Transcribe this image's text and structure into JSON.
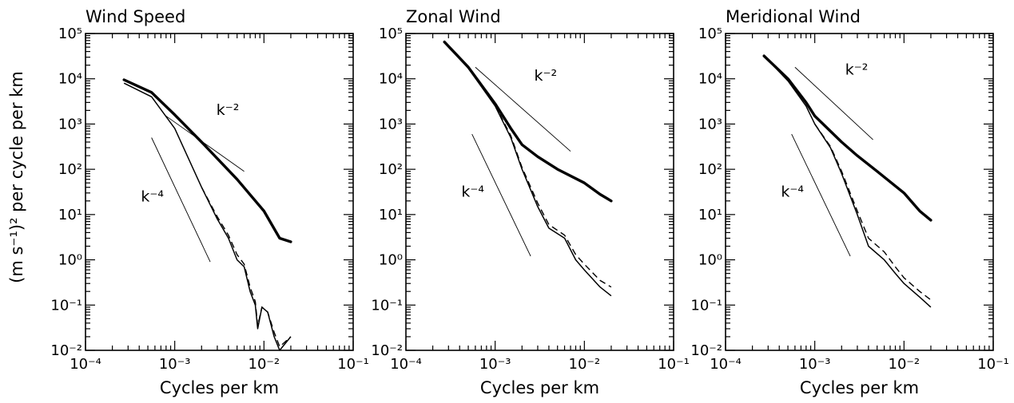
{
  "ylabel": "(m s⁻¹)² per cycle per km",
  "chart_data": [
    {
      "type": "line",
      "title": "Wind Speed",
      "xlabel": "Cycles per km",
      "x_scale": "log",
      "y_scale": "log",
      "xlim": [
        0.0001,
        0.1
      ],
      "ylim": [
        0.01,
        100000
      ],
      "x_ticks": [
        "10⁻⁴",
        "10⁻³",
        "10⁻²",
        "10⁻¹"
      ],
      "y_ticks": [
        "10⁻²",
        "10⁻¹",
        "10⁰",
        "10¹",
        "10²",
        "10³",
        "10⁴",
        "10⁵"
      ],
      "reference_lines": [
        {
          "label": "k⁻²",
          "points": [
            [
              0.0008,
              1500
            ],
            [
              0.006,
              90
            ]
          ]
        },
        {
          "label": "k⁻⁴",
          "points": [
            [
              0.00055,
              500
            ],
            [
              0.0025,
              0.9
            ]
          ]
        }
      ],
      "series": [
        {
          "style": "thick",
          "points": [
            [
              0.00027,
              9500
            ],
            [
              0.00055,
              5000
            ],
            [
              0.001,
              1600
            ],
            [
              0.002,
              400
            ],
            [
              0.005,
              60
            ],
            [
              0.01,
              12
            ],
            [
              0.015,
              3
            ],
            [
              0.02,
              2.5
            ]
          ]
        },
        {
          "style": "thin",
          "points": [
            [
              0.00027,
              8000
            ],
            [
              0.00055,
              4000
            ],
            [
              0.001,
              800
            ],
            [
              0.002,
              40
            ],
            [
              0.003,
              8
            ],
            [
              0.004,
              3
            ],
            [
              0.005,
              1
            ],
            [
              0.006,
              0.7
            ],
            [
              0.007,
              0.2
            ],
            [
              0.008,
              0.1
            ],
            [
              0.0085,
              0.03
            ],
            [
              0.0095,
              0.09
            ],
            [
              0.011,
              0.07
            ],
            [
              0.013,
              0.02
            ],
            [
              0.015,
              0.01
            ],
            [
              0.02,
              0.02
            ]
          ]
        },
        {
          "style": "dashed",
          "points": [
            [
              0.002,
              40
            ],
            [
              0.003,
              9
            ],
            [
              0.004,
              3.5
            ],
            [
              0.005,
              1.3
            ],
            [
              0.006,
              0.8
            ],
            [
              0.007,
              0.25
            ],
            [
              0.008,
              0.12
            ],
            [
              0.0085,
              0.035
            ],
            [
              0.0095,
              0.09
            ],
            [
              0.011,
              0.07
            ],
            [
              0.013,
              0.025
            ],
            [
              0.015,
              0.012
            ],
            [
              0.02,
              0.02
            ]
          ]
        }
      ]
    },
    {
      "type": "line",
      "title": "Zonal Wind",
      "xlabel": "Cycles per km",
      "x_scale": "log",
      "y_scale": "log",
      "xlim": [
        0.0001,
        0.1
      ],
      "ylim": [
        0.01,
        100000
      ],
      "x_ticks": [
        "10⁻⁴",
        "10⁻³",
        "10⁻²",
        "10⁻¹"
      ],
      "y_ticks": [
        "10⁻²",
        "10⁻¹",
        "10⁰",
        "10¹",
        "10²",
        "10³",
        "10⁴",
        "10⁵"
      ],
      "reference_lines": [
        {
          "label": "k⁻²",
          "points": [
            [
              0.0006,
              18000
            ],
            [
              0.007,
              250
            ]
          ]
        },
        {
          "label": "k⁻⁴",
          "points": [
            [
              0.00055,
              600
            ],
            [
              0.0025,
              1.2
            ]
          ]
        }
      ],
      "series": [
        {
          "style": "thick",
          "points": [
            [
              0.00027,
              65000
            ],
            [
              0.0005,
              18000
            ],
            [
              0.001,
              2800
            ],
            [
              0.0015,
              800
            ],
            [
              0.002,
              350
            ],
            [
              0.003,
              190
            ],
            [
              0.005,
              100
            ],
            [
              0.01,
              50
            ],
            [
              0.015,
              28
            ],
            [
              0.02,
              20
            ]
          ]
        },
        {
          "style": "thin",
          "points": [
            [
              0.00027,
              65000
            ],
            [
              0.0005,
              17000
            ],
            [
              0.001,
              2500
            ],
            [
              0.0015,
              500
            ],
            [
              0.002,
              100
            ],
            [
              0.003,
              15
            ],
            [
              0.004,
              5
            ],
            [
              0.006,
              3
            ],
            [
              0.008,
              1
            ],
            [
              0.01,
              0.6
            ],
            [
              0.015,
              0.25
            ],
            [
              0.02,
              0.16
            ]
          ]
        },
        {
          "style": "dashed",
          "points": [
            [
              0.001,
              2600
            ],
            [
              0.0015,
              550
            ],
            [
              0.002,
              110
            ],
            [
              0.003,
              18
            ],
            [
              0.004,
              6
            ],
            [
              0.006,
              3.5
            ],
            [
              0.008,
              1.3
            ],
            [
              0.01,
              0.8
            ],
            [
              0.015,
              0.35
            ],
            [
              0.02,
              0.25
            ]
          ]
        }
      ]
    },
    {
      "type": "line",
      "title": "Meridional Wind",
      "xlabel": "Cycles per km",
      "x_scale": "log",
      "y_scale": "log",
      "xlim": [
        0.0001,
        0.1
      ],
      "ylim": [
        0.01,
        100000
      ],
      "x_ticks": [
        "10⁻⁴",
        "10⁻³",
        "10⁻²",
        "10⁻¹"
      ],
      "y_ticks": [
        "10⁻²",
        "10⁻¹",
        "10⁰",
        "10¹",
        "10²",
        "10³",
        "10⁴",
        "10⁵"
      ],
      "reference_lines": [
        {
          "label": "k⁻²",
          "points": [
            [
              0.0006,
              18000
            ],
            [
              0.0045,
              450
            ]
          ]
        },
        {
          "label": "k⁻⁴",
          "points": [
            [
              0.00055,
              600
            ],
            [
              0.0025,
              1.2
            ]
          ]
        }
      ],
      "series": [
        {
          "style": "thick",
          "points": [
            [
              0.00027,
              32000
            ],
            [
              0.0005,
              10000
            ],
            [
              0.0008,
              3000
            ],
            [
              0.001,
              1500
            ],
            [
              0.002,
              400
            ],
            [
              0.003,
              200
            ],
            [
              0.005,
              90
            ],
            [
              0.01,
              30
            ],
            [
              0.015,
              12
            ],
            [
              0.02,
              7.5
            ]
          ]
        },
        {
          "style": "thin",
          "points": [
            [
              0.00027,
              32000
            ],
            [
              0.0005,
              9000
            ],
            [
              0.0008,
              2500
            ],
            [
              0.001,
              1000
            ],
            [
              0.0015,
              300
            ],
            [
              0.002,
              80
            ],
            [
              0.003,
              10
            ],
            [
              0.004,
              2
            ],
            [
              0.006,
              1
            ],
            [
              0.008,
              0.5
            ],
            [
              0.01,
              0.3
            ],
            [
              0.015,
              0.15
            ],
            [
              0.02,
              0.09
            ]
          ]
        },
        {
          "style": "dashed",
          "points": [
            [
              0.001,
              1000
            ],
            [
              0.0015,
              320
            ],
            [
              0.002,
              90
            ],
            [
              0.003,
              12
            ],
            [
              0.004,
              3
            ],
            [
              0.006,
              1.5
            ],
            [
              0.008,
              0.7
            ],
            [
              0.01,
              0.4
            ],
            [
              0.015,
              0.2
            ],
            [
              0.02,
              0.13
            ]
          ]
        }
      ]
    }
  ]
}
